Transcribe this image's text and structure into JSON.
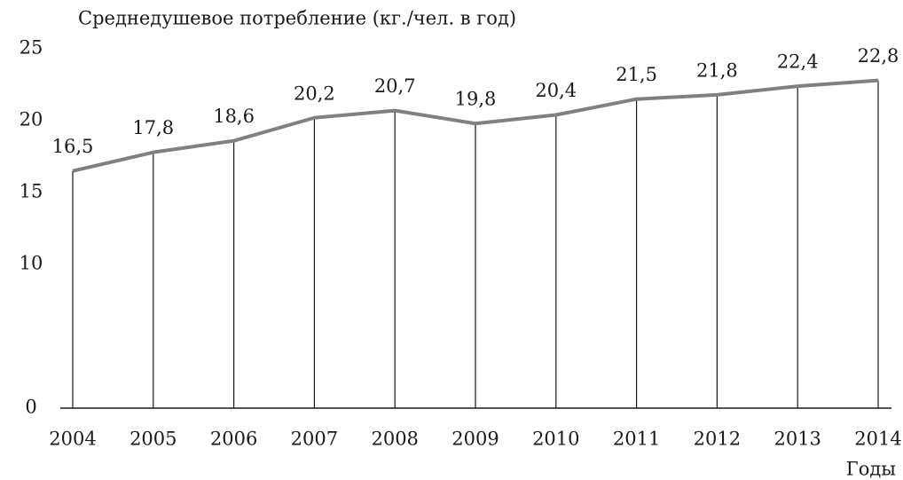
{
  "chart_data": {
    "type": "line",
    "title": "Среднедушевое потребление (кг./чел. в год)",
    "x_label": "Годы",
    "categories": [
      "2004",
      "2005",
      "2006",
      "2007",
      "2008",
      "2009",
      "2010",
      "2011",
      "2012",
      "2013",
      "2014"
    ],
    "series": [
      {
        "name": "Среднедушевое потребление",
        "color": "#808080",
        "values": [
          16.5,
          17.8,
          18.6,
          20.2,
          20.7,
          19.8,
          20.4,
          21.5,
          21.8,
          22.4,
          22.8
        ],
        "value_labels": [
          "16,5",
          "17,8",
          "18,6",
          "20,2",
          "20,7",
          "19,8",
          "20,4",
          "21,5",
          "21,8",
          "22,4",
          "22,8"
        ]
      }
    ],
    "ylim": [
      0,
      25
    ],
    "yticks": [
      0,
      10,
      15,
      20,
      25
    ],
    "grid": false,
    "drop_lines": true
  }
}
